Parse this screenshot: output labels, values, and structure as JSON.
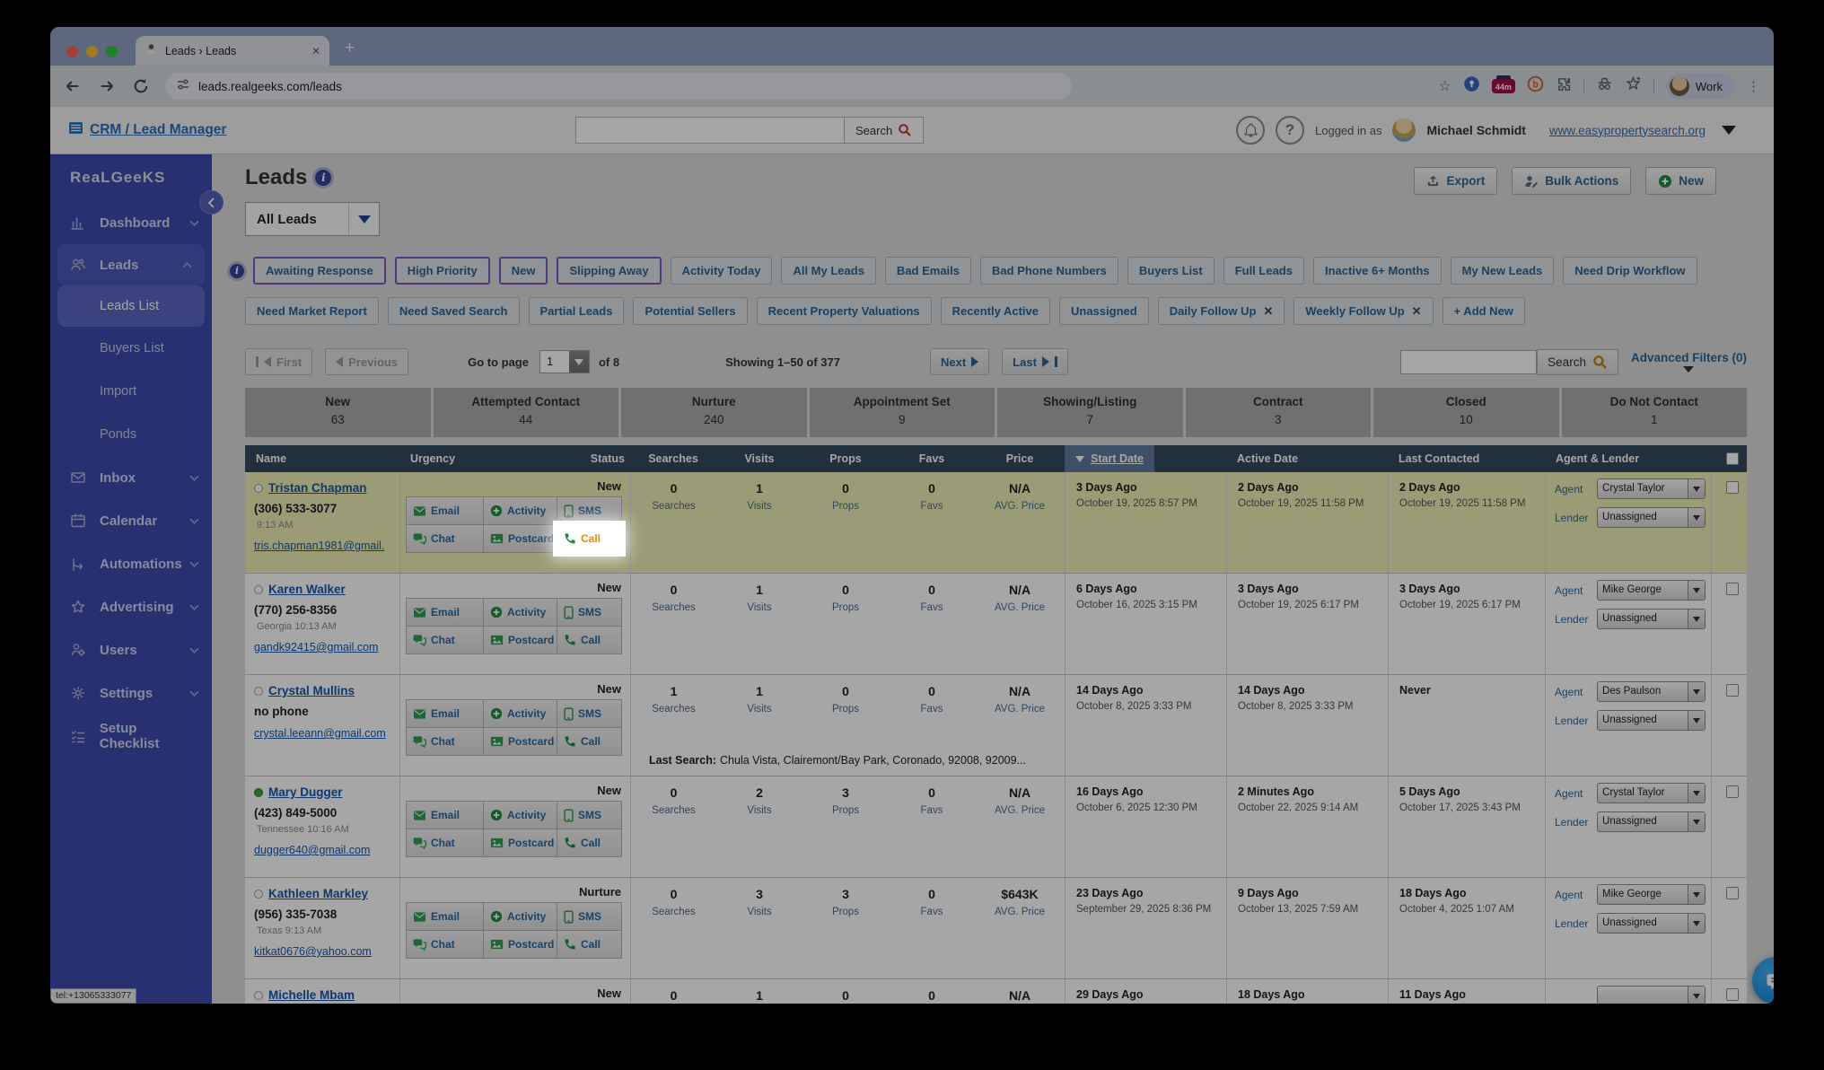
{
  "browser": {
    "tab_title": "Leads › Leads",
    "url": "leads.realgeeks.com/leads",
    "extension_badge": "44m",
    "extension_b": "b",
    "profile_label": "Work"
  },
  "app_header": {
    "brand": "CRM / Lead Manager",
    "search_button": "Search",
    "logged_in_as": "Logged in as",
    "user_name": "Michael Schmidt",
    "site_link": "www.easypropertysearch.org"
  },
  "sidebar": {
    "logo": "RealGeeks",
    "items": [
      {
        "label": "Dashboard",
        "icon": "dashboard-icon",
        "chevron": "down"
      },
      {
        "label": "Leads",
        "icon": "leads-icon",
        "chevron": "up",
        "active": true
      },
      {
        "label": "Leads List",
        "sub": true,
        "selected": true
      },
      {
        "label": "Buyers List",
        "sub": true
      },
      {
        "label": "Import",
        "sub": true
      },
      {
        "label": "Ponds",
        "sub": true
      },
      {
        "label": "Inbox",
        "icon": "inbox-icon",
        "chevron": "down"
      },
      {
        "label": "Calendar",
        "icon": "calendar-icon",
        "chevron": "down"
      },
      {
        "label": "Automations",
        "icon": "automations-icon",
        "chevron": "down"
      },
      {
        "label": "Advertising",
        "icon": "advertising-icon",
        "chevron": "down"
      },
      {
        "label": "Users",
        "icon": "users-icon",
        "chevron": "down"
      },
      {
        "label": "Settings",
        "icon": "settings-icon",
        "chevron": "down"
      },
      {
        "label": "Setup Checklist",
        "icon": "checklist-icon"
      }
    ]
  },
  "page": {
    "title": "Leads",
    "view_select": "All Leads",
    "export_button": "Export",
    "bulk_actions_button": "Bulk Actions",
    "new_button": "New"
  },
  "quick_filters": {
    "row1": [
      {
        "label": "Awaiting Response",
        "starred": true
      },
      {
        "label": "High Priority",
        "starred": true
      },
      {
        "label": "New",
        "starred": true
      },
      {
        "label": "Slipping Away",
        "starred": true
      },
      {
        "label": "Activity Today"
      },
      {
        "label": "All My Leads"
      },
      {
        "label": "Bad Emails"
      },
      {
        "label": "Bad Phone Numbers"
      },
      {
        "label": "Buyers List"
      },
      {
        "label": "Full Leads"
      },
      {
        "label": "Inactive 6+ Months"
      },
      {
        "label": "My New Leads"
      },
      {
        "label": "Need Drip Workflow"
      }
    ],
    "row2": [
      {
        "label": "Need Market Report"
      },
      {
        "label": "Need Saved Search"
      },
      {
        "label": "Partial Leads"
      },
      {
        "label": "Potential Sellers"
      },
      {
        "label": "Recent Property Valuations"
      },
      {
        "label": "Recently Active"
      },
      {
        "label": "Unassigned"
      },
      {
        "label": "Daily Follow Up",
        "removable": true
      },
      {
        "label": "Weekly Follow Up",
        "removable": true
      },
      {
        "label": "+ Add New"
      }
    ]
  },
  "pagination": {
    "first": "First",
    "previous": "Previous",
    "go_to_page": "Go to page",
    "page": "1",
    "of": "of 8",
    "showing": "Showing 1–50 of 377",
    "next": "Next",
    "last": "Last",
    "search_button": "Search",
    "advanced_filters": "Advanced Filters (0)"
  },
  "status_tabs": [
    {
      "label": "New",
      "count": "63"
    },
    {
      "label": "Attempted Contact",
      "count": "44"
    },
    {
      "label": "Nurture",
      "count": "240"
    },
    {
      "label": "Appointment Set",
      "count": "9"
    },
    {
      "label": "Showing/Listing",
      "count": "7"
    },
    {
      "label": "Contract",
      "count": "3"
    },
    {
      "label": "Closed",
      "count": "10"
    },
    {
      "label": "Do Not Contact",
      "count": "1"
    }
  ],
  "table": {
    "headers": [
      "Name",
      "Urgency",
      "Status",
      "Searches",
      "Visits",
      "Props",
      "Favs",
      "Price",
      "Start Date",
      "Active Date",
      "Last Contacted",
      "Agent & Lender"
    ],
    "sorted_by": "Start Date",
    "actions": [
      "Email",
      "Activity",
      "SMS",
      "Chat",
      "Postcard",
      "Call"
    ],
    "count_labels": [
      "Searches",
      "Visits",
      "Props",
      "Favs"
    ],
    "avg_price_label": "AVG. Price",
    "agent_label": "Agent",
    "lender_label": "Lender",
    "last_search_prefix": "Last Search:"
  },
  "leads": [
    {
      "name": "Tristan Chapman",
      "dot": "gray",
      "phone": "(306) 533-3077",
      "state": "",
      "time": "9:13 AM",
      "email": "tris.chapman1981@gmail.",
      "status": "New",
      "searches": "0",
      "visits": "1",
      "props": "0",
      "favs": "0",
      "price": "N/A",
      "start_rel": "3 Days Ago",
      "start_date": "October 19, 2025 8:57 PM",
      "active_rel": "2 Days Ago",
      "active_date": "October 19, 2025 11:58 PM",
      "last_rel": "2 Days Ago",
      "last_date": "October 19, 2025 11:58 PM",
      "agent": "Crystal Taylor",
      "lender": "Unassigned",
      "row_highlight": true,
      "call_spotlight": true
    },
    {
      "name": "Karen Walker",
      "dot": "gray",
      "phone": "(770) 256-8356",
      "state": "Georgia",
      "time": "10:13 AM",
      "email": "gandk92415@gmail.com",
      "status": "New",
      "searches": "0",
      "visits": "1",
      "props": "0",
      "favs": "0",
      "price": "N/A",
      "start_rel": "6 Days Ago",
      "start_date": "October 16, 2025 3:15 PM",
      "active_rel": "3 Days Ago",
      "active_date": "October 19, 2025 6:17 PM",
      "last_rel": "3 Days Ago",
      "last_date": "October 19, 2025 6:17 PM",
      "agent": "Mike George",
      "lender": "Unassigned"
    },
    {
      "name": "Crystal Mullins",
      "dot": "gray",
      "phone": "no phone",
      "state": "",
      "time": "",
      "email": "crystal.leeann@gmail.com",
      "status": "New",
      "searches": "1",
      "visits": "1",
      "props": "0",
      "favs": "0",
      "price": "N/A",
      "start_rel": "14 Days Ago",
      "start_date": "October 8, 2025 3:33 PM",
      "active_rel": "14 Days Ago",
      "active_date": "October 8, 2025 3:33 PM",
      "last_rel": "Never",
      "last_date": "",
      "last_search": "Chula Vista, Clairemont/Bay Park, Coronado, 92008, 92009...",
      "agent": "Des Paulson",
      "lender": "Unassigned"
    },
    {
      "name": "Mary Dugger",
      "dot": "green",
      "phone": "(423) 849-5000",
      "state": "Tennessee",
      "time": "10:16 AM",
      "email": "dugger640@gmail.com",
      "status": "New",
      "searches": "0",
      "visits": "2",
      "props": "3",
      "favs": "0",
      "price": "N/A",
      "start_rel": "16 Days Ago",
      "start_date": "October 6, 2025 12:30 PM",
      "active_rel": "2 Minutes Ago",
      "active_date": "October 22, 2025 9:14 AM",
      "last_rel": "5 Days Ago",
      "last_date": "October 17, 2025 3:43 PM",
      "agent": "Crystal Taylor",
      "lender": "Unassigned"
    },
    {
      "name": "Kathleen Markley",
      "dot": "gray",
      "phone": "(956) 335-7038",
      "state": "Texas",
      "time": "9:13 AM",
      "email": "kitkat0676@yahoo.com",
      "status": "Nurture",
      "searches": "0",
      "visits": "3",
      "props": "3",
      "favs": "0",
      "price": "$643K",
      "start_rel": "23 Days Ago",
      "start_date": "September 29, 2025 8:36 PM",
      "active_rel": "9 Days Ago",
      "active_date": "October 13, 2025 7:59 AM",
      "last_rel": "18 Days Ago",
      "last_date": "October 4, 2025 1:07 AM",
      "agent": "Mike George",
      "lender": "Unassigned"
    },
    {
      "name": "Michelle Mbam",
      "dot": "gray",
      "phone": "",
      "state": "",
      "time": "",
      "email": "",
      "status": "New",
      "searches": "0",
      "visits": "1",
      "props": "0",
      "favs": "0",
      "price": "N/A",
      "start_rel": "29 Days Ago",
      "start_date": "",
      "active_rel": "18 Days Ago",
      "active_date": "",
      "last_rel": "11 Days Ago",
      "last_date": "",
      "agent": "",
      "lender": "",
      "partial": true
    }
  ],
  "status_bar": "tel:+13065333077",
  "colors": {
    "sidebar": "#3c4cae",
    "table_header": "#35495f",
    "sort_highlight": "#5f7c9b",
    "row_highlight": "#eef0b4",
    "link_blue": "#1756ad",
    "action_green": "#2e9e4f",
    "spotlight_orange": "#e8890c",
    "starred_filter_border": "#7a57c4"
  }
}
